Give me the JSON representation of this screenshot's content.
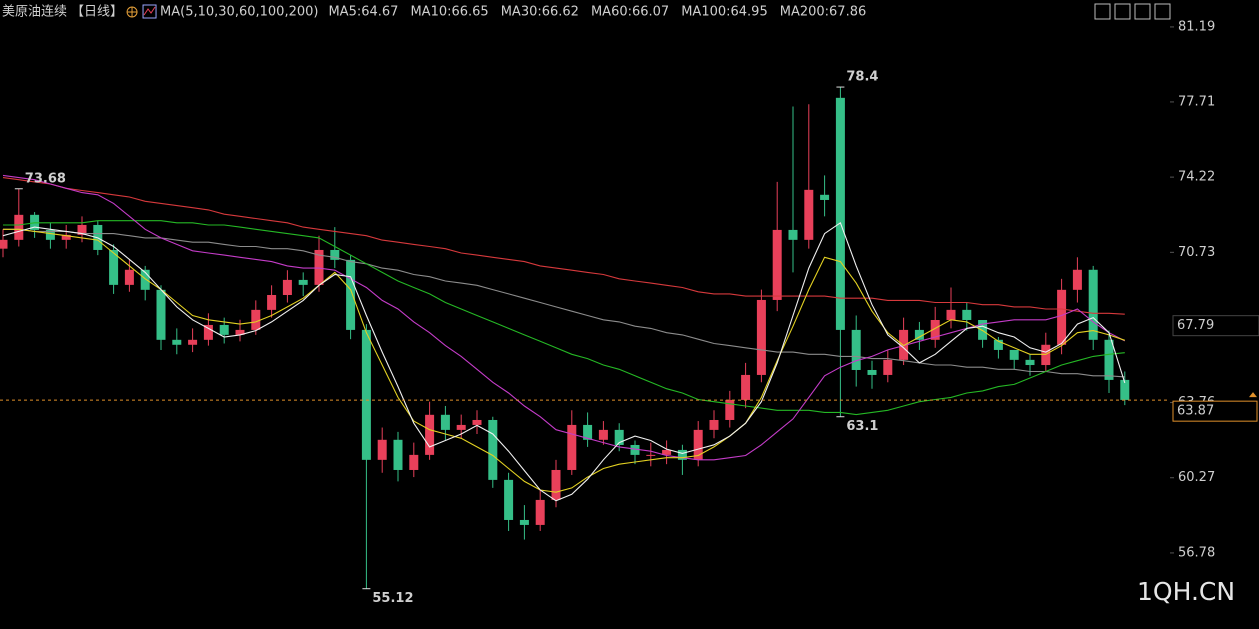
{
  "chart_data": {
    "type": "candlestick",
    "title": "美原油连续",
    "period": "【日线】",
    "indicator": "MA(5,10,30,60,100,200)",
    "watermark": "1QH.CN",
    "up_color": "#e8405a",
    "down_color": "#35bf88",
    "ylim": [
      53.25,
      82.44
    ],
    "yticks": [
      81.19,
      77.71,
      74.22,
      70.73,
      63.76,
      60.27,
      56.78
    ],
    "grid": false,
    "last_price": 63.87,
    "marker_price": 67.79,
    "open": [
      70.9,
      71.31,
      72.47,
      71.77,
      71.31,
      71.54,
      72.0,
      70.84,
      69.22,
      69.92,
      68.99,
      66.67,
      66.44,
      66.67,
      67.36,
      66.9,
      67.13,
      68.06,
      68.75,
      69.45,
      69.22,
      70.84,
      70.38,
      67.13,
      61.1,
      62.03,
      60.63,
      61.33,
      63.19,
      62.49,
      62.72,
      62.95,
      60.17,
      58.31,
      58.08,
      59.24,
      60.63,
      62.72,
      62.03,
      62.49,
      61.79,
      61.33,
      61.33,
      61.56,
      61.1,
      62.49,
      62.95,
      63.88,
      65.04,
      68.52,
      71.77,
      71.31,
      73.4,
      77.9,
      67.13,
      65.27,
      65.04,
      65.74,
      67.13,
      66.67,
      67.59,
      68.06,
      67.59,
      66.67,
      66.2,
      65.74,
      65.5,
      66.44,
      68.99,
      69.92,
      66.67,
      64.81
    ],
    "high": [
      71.8,
      73.68,
      72.6,
      72.1,
      72.0,
      72.4,
      72.2,
      71.1,
      70.4,
      70.1,
      69.2,
      67.2,
      67.2,
      67.9,
      67.7,
      67.6,
      68.5,
      69.2,
      69.9,
      69.8,
      71.5,
      71.9,
      70.6,
      67.4,
      62.6,
      62.4,
      61.9,
      63.8,
      63.6,
      63.2,
      63.4,
      63.1,
      60.5,
      59.0,
      59.7,
      61.1,
      63.4,
      63.3,
      62.9,
      62.8,
      62.0,
      61.9,
      62.0,
      61.8,
      62.9,
      63.4,
      64.3,
      65.6,
      69.0,
      74.0,
      77.5,
      77.6,
      74.3,
      78.4,
      67.8,
      65.7,
      66.2,
      67.7,
      67.5,
      68.2,
      69.1,
      68.4,
      67.4,
      66.8,
      66.2,
      66.0,
      67.0,
      69.5,
      70.5,
      70.1,
      67.1,
      65.2
    ],
    "low": [
      70.5,
      71.0,
      71.4,
      70.9,
      70.9,
      71.2,
      70.6,
      68.8,
      68.9,
      68.5,
      66.2,
      66.0,
      66.1,
      66.4,
      66.5,
      66.6,
      66.9,
      67.7,
      68.4,
      68.7,
      68.9,
      70.0,
      66.7,
      55.12,
      60.5,
      60.1,
      60.3,
      61.1,
      62.0,
      62.1,
      62.3,
      59.8,
      57.8,
      57.4,
      57.8,
      58.9,
      60.4,
      61.7,
      61.8,
      61.5,
      60.9,
      60.8,
      60.9,
      60.4,
      60.8,
      62.1,
      62.6,
      63.5,
      64.7,
      68.0,
      69.8,
      70.9,
      72.4,
      63.1,
      64.5,
      64.4,
      64.7,
      65.5,
      66.2,
      66.3,
      67.2,
      67.1,
      66.3,
      65.8,
      65.3,
      65.0,
      65.2,
      66.0,
      68.4,
      66.2,
      64.2,
      63.64
    ],
    "close": [
      71.31,
      72.47,
      71.77,
      71.31,
      71.54,
      72.0,
      70.84,
      69.22,
      69.92,
      68.99,
      66.67,
      66.44,
      66.67,
      67.36,
      66.9,
      67.13,
      68.06,
      68.75,
      69.45,
      69.22,
      70.84,
      70.38,
      67.13,
      61.1,
      62.03,
      60.63,
      61.33,
      63.19,
      62.49,
      62.72,
      62.95,
      60.17,
      58.31,
      58.08,
      59.24,
      60.63,
      62.72,
      62.03,
      62.49,
      61.79,
      61.33,
      61.33,
      61.56,
      61.1,
      62.49,
      62.95,
      63.88,
      65.04,
      68.52,
      71.77,
      71.31,
      73.63,
      73.16,
      67.13,
      65.27,
      65.04,
      65.74,
      67.13,
      66.67,
      67.59,
      68.06,
      67.59,
      66.67,
      66.2,
      65.74,
      65.5,
      66.44,
      68.99,
      69.92,
      66.67,
      64.81,
      63.88
    ],
    "series": [
      {
        "name": "MA5:64.67",
        "color": "#f0f0f0",
        "values": [
          71.5,
          71.7,
          71.9,
          71.8,
          71.7,
          71.6,
          71.4,
          71.0,
          70.4,
          69.8,
          69.0,
          68.2,
          67.6,
          67.2,
          66.8,
          66.9,
          67.1,
          67.5,
          68.0,
          68.5,
          69.2,
          69.7,
          69.6,
          67.8,
          66.1,
          64.5,
          62.8,
          61.7,
          62.0,
          62.3,
          62.7,
          62.3,
          61.5,
          60.6,
          59.7,
          59.2,
          59.5,
          60.2,
          61.1,
          61.9,
          62.2,
          62.0,
          61.6,
          61.4,
          61.6,
          61.8,
          62.2,
          62.8,
          63.8,
          65.6,
          67.8,
          70.0,
          71.6,
          72.1,
          70.1,
          68.3,
          66.9,
          66.3,
          65.6,
          66.0,
          66.6,
          67.2,
          67.3,
          67.0,
          66.8,
          66.3,
          66.1,
          66.5,
          67.4,
          67.7,
          67.0,
          64.67
        ]
      },
      {
        "name": "MA10:66.65",
        "color": "#e3d122",
        "values": [
          71.8,
          71.8,
          71.7,
          71.6,
          71.5,
          71.4,
          71.3,
          70.7,
          70.1,
          69.5,
          69.0,
          68.4,
          67.8,
          67.6,
          67.5,
          67.4,
          67.5,
          67.8,
          68.2,
          68.6,
          69.2,
          69.8,
          69.0,
          67.0,
          65.5,
          64.0,
          62.9,
          62.5,
          62.3,
          62.1,
          61.7,
          61.3,
          60.7,
          60.1,
          59.7,
          59.6,
          59.8,
          60.3,
          60.7,
          60.9,
          61.0,
          61.1,
          61.2,
          61.2,
          61.3,
          61.7,
          62.2,
          62.8,
          64.0,
          65.7,
          67.3,
          69.0,
          70.5,
          70.3,
          69.3,
          68.0,
          67.0,
          66.4,
          66.8,
          67.2,
          67.6,
          67.5,
          67.1,
          66.6,
          66.3,
          66.0,
          66.0,
          66.4,
          67.0,
          67.1,
          66.9,
          66.65
        ]
      },
      {
        "name": "MA30:66.62",
        "color": "#c43cc8",
        "values": [
          74.3,
          74.2,
          74.1,
          73.9,
          73.7,
          73.5,
          73.4,
          73.0,
          72.4,
          71.8,
          71.4,
          71.1,
          70.8,
          70.7,
          70.6,
          70.5,
          70.4,
          70.3,
          70.1,
          70.0,
          70.0,
          69.9,
          69.5,
          69.1,
          68.5,
          68.1,
          67.5,
          67.0,
          66.4,
          65.9,
          65.3,
          64.7,
          64.2,
          63.6,
          63.1,
          62.5,
          62.3,
          62.1,
          61.9,
          61.7,
          61.6,
          61.5,
          61.3,
          61.2,
          61.1,
          61.1,
          61.2,
          61.3,
          61.8,
          62.4,
          63.0,
          64.0,
          65.0,
          65.4,
          65.7,
          65.9,
          66.2,
          66.4,
          66.6,
          66.8,
          67.0,
          67.2,
          67.4,
          67.5,
          67.6,
          67.6,
          67.6,
          67.8,
          68.1,
          67.5,
          67.0,
          66.62
        ]
      },
      {
        "name": "MA60:66.07",
        "color": "#25b825",
        "values": [
          72.0,
          72.0,
          72.1,
          72.1,
          72.1,
          72.1,
          72.2,
          72.2,
          72.2,
          72.2,
          72.2,
          72.1,
          72.1,
          72.0,
          72.0,
          71.9,
          71.8,
          71.7,
          71.6,
          71.5,
          71.4,
          71.0,
          70.6,
          70.2,
          69.8,
          69.4,
          69.1,
          68.8,
          68.4,
          68.1,
          67.8,
          67.5,
          67.2,
          66.9,
          66.6,
          66.3,
          66.0,
          65.8,
          65.5,
          65.3,
          65.0,
          64.7,
          64.4,
          64.2,
          63.9,
          63.8,
          63.7,
          63.6,
          63.5,
          63.4,
          63.4,
          63.4,
          63.3,
          63.3,
          63.2,
          63.3,
          63.4,
          63.6,
          63.8,
          63.9,
          64.0,
          64.2,
          64.3,
          64.5,
          64.6,
          64.9,
          65.2,
          65.5,
          65.7,
          65.9,
          66.0,
          66.07
        ]
      },
      {
        "name": "MA100:64.95",
        "color": "#8c8c8c",
        "values": [
          71.8,
          71.8,
          71.7,
          71.7,
          71.7,
          71.6,
          71.6,
          71.6,
          71.5,
          71.4,
          71.4,
          71.3,
          71.2,
          71.2,
          71.1,
          71.0,
          71.0,
          70.9,
          70.9,
          70.8,
          70.6,
          70.5,
          70.3,
          70.2,
          70.0,
          69.9,
          69.7,
          69.6,
          69.4,
          69.3,
          69.2,
          69.0,
          68.8,
          68.6,
          68.4,
          68.2,
          68.0,
          67.8,
          67.6,
          67.5,
          67.3,
          67.2,
          67.0,
          66.9,
          66.7,
          66.5,
          66.4,
          66.3,
          66.2,
          66.1,
          66.1,
          66.0,
          66.0,
          65.9,
          65.9,
          65.8,
          65.8,
          65.7,
          65.6,
          65.5,
          65.5,
          65.4,
          65.4,
          65.3,
          65.3,
          65.2,
          65.2,
          65.1,
          65.1,
          65.0,
          65.0,
          64.95
        ]
      },
      {
        "name": "MA200:67.86",
        "color": "#d6393c",
        "values": [
          74.2,
          74.1,
          74.0,
          73.9,
          73.7,
          73.6,
          73.5,
          73.4,
          73.3,
          73.1,
          73.0,
          72.9,
          72.8,
          72.7,
          72.5,
          72.4,
          72.3,
          72.2,
          72.1,
          71.9,
          71.8,
          71.7,
          71.6,
          71.5,
          71.3,
          71.2,
          71.1,
          71.0,
          70.9,
          70.7,
          70.6,
          70.5,
          70.4,
          70.3,
          70.1,
          70.0,
          69.9,
          69.8,
          69.7,
          69.5,
          69.4,
          69.3,
          69.2,
          69.1,
          68.9,
          68.8,
          68.8,
          68.7,
          68.7,
          68.7,
          68.7,
          68.7,
          68.7,
          68.6,
          68.6,
          68.6,
          68.5,
          68.5,
          68.5,
          68.4,
          68.4,
          68.4,
          68.3,
          68.3,
          68.2,
          68.2,
          68.1,
          68.1,
          68.0,
          67.9,
          67.9,
          67.86
        ]
      }
    ]
  }
}
